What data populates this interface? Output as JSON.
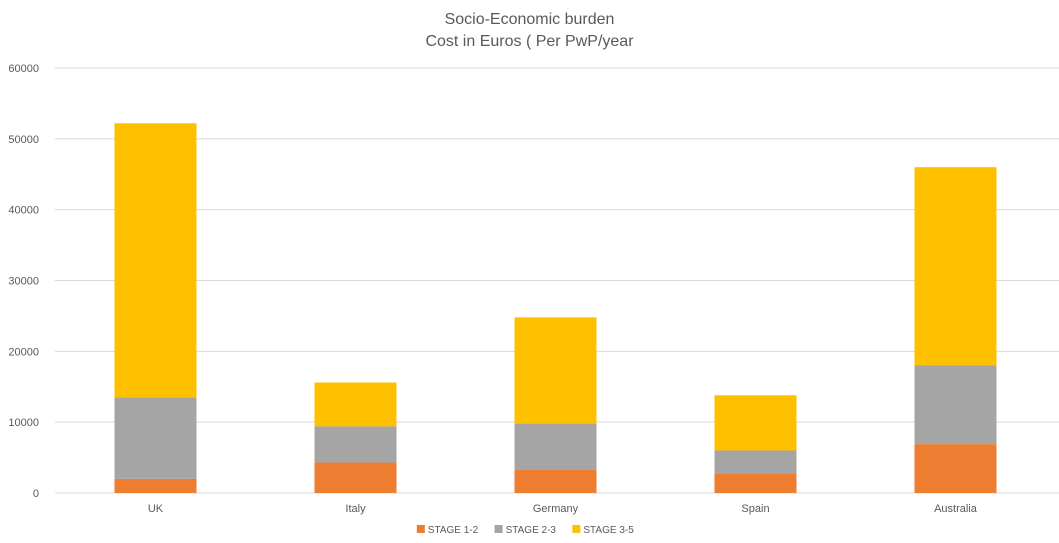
{
  "chart_data": {
    "type": "bar",
    "stacked": true,
    "title": "Socio-Economic burden",
    "subtitle": "Cost in Euros ( Per PwP/year",
    "xlabel": "",
    "ylabel": "",
    "categories": [
      "UK",
      "Italy",
      "Germany",
      "Spain",
      "Australia"
    ],
    "series": [
      {
        "name": "STAGE 1-2",
        "color": "#ed7d31",
        "values": [
          2000,
          4300,
          3300,
          2800,
          6900
        ]
      },
      {
        "name": "STAGE 2-3",
        "color": "#a5a5a5",
        "values": [
          11500,
          5100,
          6500,
          3200,
          11100
        ]
      },
      {
        "name": "STAGE 3-5",
        "color": "#ffc000",
        "values": [
          38700,
          6200,
          15000,
          7800,
          28000
        ]
      }
    ],
    "ylim": [
      0,
      60000
    ],
    "yticks": [
      "0",
      "10000",
      "20000",
      "30000",
      "40000",
      "50000",
      "60000"
    ],
    "grid": true,
    "legend_position": "bottom"
  }
}
